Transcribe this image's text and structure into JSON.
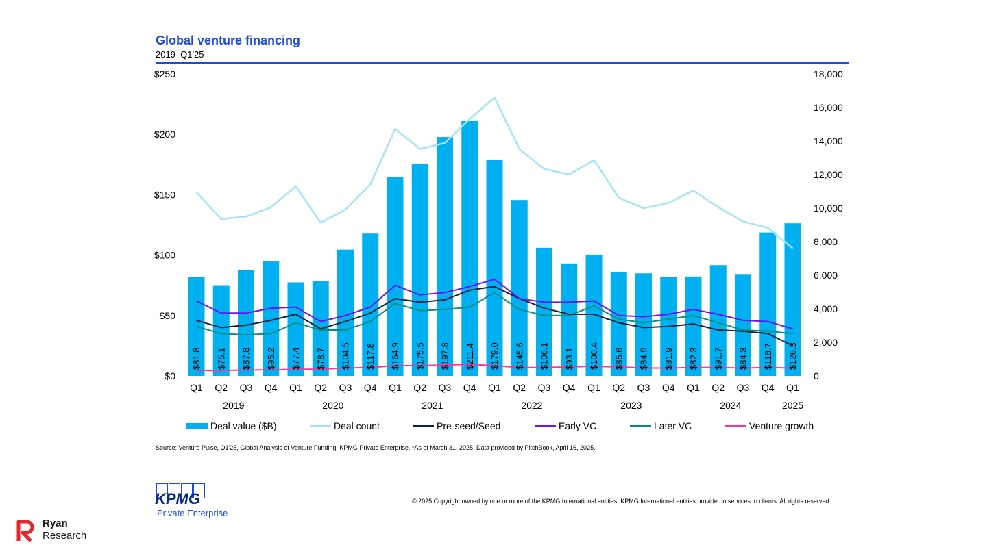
{
  "header": {
    "title": "Global venture financing",
    "subtitle": "2019–Q1'25"
  },
  "chart_data": {
    "type": "bar",
    "title": "Global venture financing",
    "subtitle": "2019–Q1'25",
    "quarters": [
      "Q1",
      "Q2",
      "Q3",
      "Q4",
      "Q1",
      "Q2",
      "Q3",
      "Q4",
      "Q1",
      "Q2",
      "Q3",
      "Q4",
      "Q1",
      "Q2",
      "Q3",
      "Q4",
      "Q1",
      "Q2",
      "Q3",
      "Q4",
      "Q1",
      "Q2",
      "Q3",
      "Q4",
      "Q1"
    ],
    "years": [
      {
        "label": "2019",
        "start": 0,
        "count": 4
      },
      {
        "label": "2020",
        "start": 4,
        "count": 4
      },
      {
        "label": "2021",
        "start": 8,
        "count": 4
      },
      {
        "label": "2022",
        "start": 12,
        "count": 4
      },
      {
        "label": "2023",
        "start": 16,
        "count": 4
      },
      {
        "label": "2024",
        "start": 20,
        "count": 4
      },
      {
        "label": "2025",
        "start": 24,
        "count": 1
      }
    ],
    "y_left": {
      "range": [
        0,
        250
      ],
      "ticks": [
        "$0",
        "$50",
        "$100",
        "$150",
        "$200",
        "$250"
      ]
    },
    "y_right": {
      "range": [
        0,
        18000
      ],
      "ticks": [
        "0",
        "2,000",
        "4,000",
        "6,000",
        "8,000",
        "10,000",
        "12,000",
        "14,000",
        "16,000",
        "18,000"
      ]
    },
    "bars": {
      "name": "Deal value ($B)",
      "color": "#00b0f0",
      "values": [
        81.8,
        75.1,
        87.8,
        95.2,
        77.4,
        78.7,
        104.5,
        117.8,
        164.9,
        175.5,
        197.8,
        211.4,
        179.0,
        145.6,
        106.1,
        93.1,
        100.4,
        85.6,
        84.9,
        81.9,
        82.3,
        91.7,
        84.3,
        118.7,
        126.3
      ],
      "labels": [
        "$81.8",
        "$75.1",
        "$87.8",
        "$95.2",
        "$77.4",
        "$78.7",
        "$104.5",
        "$117.8",
        "$164.9",
        "$175.5",
        "$197.8",
        "$211.4",
        "$179.0",
        "$145.6",
        "$106.1",
        "$93.1",
        "$100.4",
        "$85.6",
        "$84.9",
        "$81.9",
        "$82.3",
        "$91.7",
        "$84.3",
        "$118.7",
        "$126.3"
      ]
    },
    "series": [
      {
        "name": "Deal count",
        "axis": "right",
        "color": "#a7e3f7",
        "values": [
          10950,
          9350,
          9500,
          10050,
          11300,
          9130,
          9920,
          11420,
          14720,
          13530,
          13880,
          15320,
          16590,
          13520,
          12330,
          12010,
          12870,
          10620,
          9990,
          10310,
          11050,
          10060,
          9210,
          8820,
          7610
        ]
      },
      {
        "name": "Pre-seed/Seed",
        "axis": "left",
        "color": "#0c233c",
        "values": [
          46,
          40,
          42,
          46,
          51,
          39,
          45,
          52,
          64,
          61,
          63,
          71,
          74,
          64,
          56,
          51,
          51,
          44,
          40,
          41,
          43,
          38,
          37,
          35,
          25
        ]
      },
      {
        "name": "Early VC",
        "axis": "left",
        "color": "#7213ea",
        "values": [
          62,
          52,
          52,
          56,
          57,
          45,
          50,
          57,
          75,
          67,
          69,
          74,
          80,
          64,
          61,
          61,
          62,
          50,
          49,
          51,
          55,
          51,
          46,
          45,
          39
        ]
      },
      {
        "name": "Later VC",
        "axis": "left",
        "color": "#098e7e",
        "values": [
          41,
          35,
          34,
          35,
          44,
          38,
          38,
          45,
          60,
          54,
          55,
          57,
          69,
          55,
          50,
          50,
          58,
          47,
          44,
          47,
          50,
          44,
          38,
          37,
          35
        ]
      },
      {
        "name": "Venture growth",
        "axis": "left",
        "color": "#fd349c",
        "values": [
          4.5,
          4.4,
          5,
          5,
          5.5,
          5.5,
          6.5,
          7,
          8.5,
          8.5,
          9,
          9.5,
          8.5,
          7,
          7,
          7.5,
          8,
          7.5,
          6.5,
          6.5,
          7,
          7,
          6.5,
          7,
          6.5
        ]
      }
    ]
  },
  "footer": {
    "source": "Source: Venture Pulse, Q1'25, Global Analysis of Venture Funding, KPMG Private Enterprise. *As of March 31, 2025. Data provided by PitchBook, April 16, 2025.",
    "copyright": "© 2025 Copyright owned by one or more of the KPMG International entities. KPMG International entities provide no services to clients. All rights reserved.",
    "kpmg_wordmark": "KPMG",
    "kpmg_sub": "Private Enterprise",
    "ryan_line1": "Ryan",
    "ryan_line2": "Research",
    "ryan_color": "#e6262c"
  }
}
